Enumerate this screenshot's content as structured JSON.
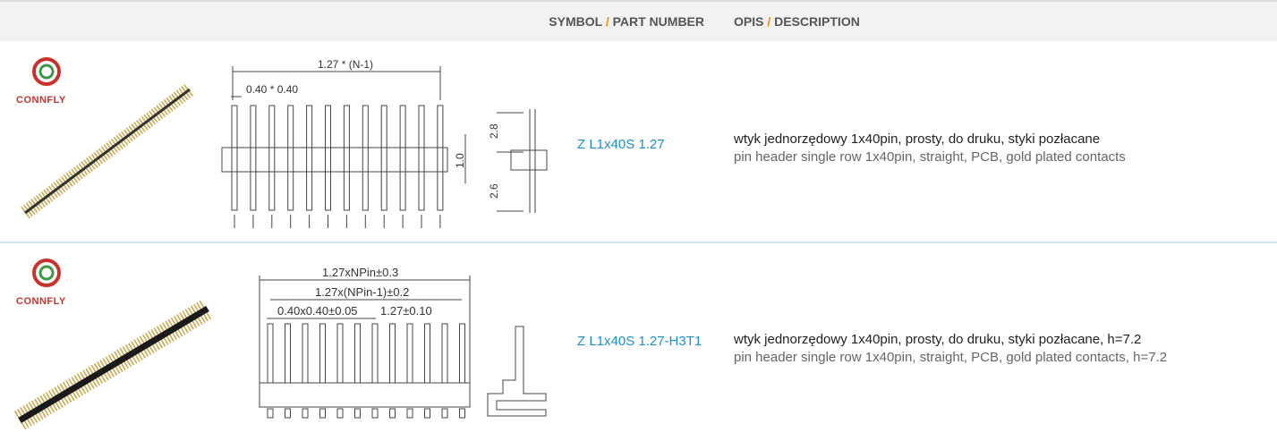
{
  "header": {
    "symbol": {
      "main": "SYMBOL",
      "sep": "/",
      "sub": "PART NUMBER"
    },
    "description": {
      "main": "OPIS",
      "sep": "/",
      "sub": "DESCRIPTION"
    }
  },
  "rows": [
    {
      "logo": "CONNFLY",
      "drawing_labels": [
        "1.27 * (N-1)",
        "0.40 * 0.40",
        "2.8",
        "1.0",
        "2.6"
      ],
      "part_number": "Z L1x40S 1.27",
      "desc_pl": "wtyk jednorzędowy 1x40pin, prosty, do druku, styki pozłacane",
      "desc_en": "pin header single row 1x40pin, straight, PCB, gold plated contacts"
    },
    {
      "logo": "CONNFLY",
      "drawing_labels": [
        "1.27xNPin±0.3",
        "1.27x(NPin-1)±0.2",
        "0.40x0.40±0.05",
        "1.27±0.10"
      ],
      "part_number": "Z L1x40S 1.27-H3T1",
      "desc_pl": "wtyk jednorzędowy 1x40pin, prosty, do druku, styki pozłacane, h=7.2",
      "desc_en": "pin header single row 1x40pin, straight, PCB, gold plated contacts, h=7.2"
    }
  ]
}
